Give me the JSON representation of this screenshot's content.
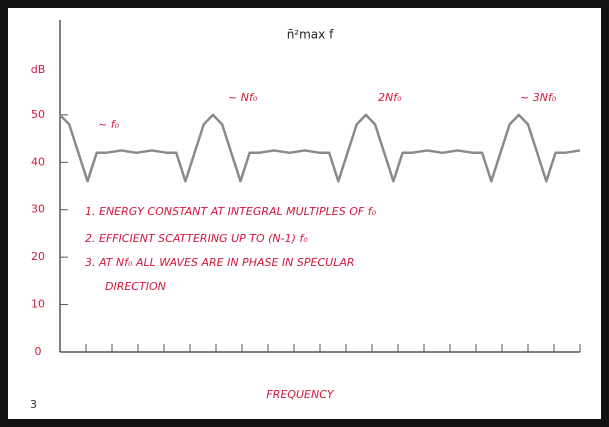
{
  "chart_data": {
    "type": "line",
    "title": "n̄²max f",
    "y_label": "dB",
    "x_label": "FREQUENCY",
    "annotations": [
      "~ f₀",
      "~ Nf₀",
      "2Nf₀",
      "~ 3Nf₀"
    ],
    "notes": [
      "1. ENERGY CONSTANT AT INTEGRAL MULTIPLES OF f₀",
      "2. EFFICIENT SCATTERING UP TO (N-1) f₀",
      "3. AT Nf₀ ALL WAVES ARE IN PHASE IN SPECULAR",
      "DIRECTION"
    ],
    "corner_mark": "3",
    "x": [
      0,
      0.06,
      0.12,
      0.18,
      0.24,
      0.3,
      0.4,
      0.5,
      0.6,
      0.7,
      0.76,
      0.82,
      0.88,
      0.94,
      1,
      1.06,
      1.12,
      1.18,
      1.24,
      1.3,
      1.4,
      1.5,
      1.6,
      1.7,
      1.76,
      1.82,
      1.88,
      1.94,
      2,
      2.06,
      2.12,
      2.18,
      2.24,
      2.3,
      2.4,
      2.5,
      2.6,
      2.7,
      2.76,
      2.82,
      2.88,
      2.94,
      3,
      3.06,
      3.12,
      3.18,
      3.24,
      3.3,
      3.4
    ],
    "series": [
      {
        "color": "#8a8a8a",
        "values": [
          50,
          48,
          42,
          36,
          42,
          42,
          42.5,
          42,
          42.5,
          42,
          42,
          36,
          42,
          48,
          50,
          48,
          42,
          36,
          42,
          42,
          42.5,
          42,
          42.5,
          42,
          42,
          36,
          42,
          48,
          50,
          48,
          42,
          36,
          42,
          42,
          42.5,
          42,
          42.5,
          42,
          42,
          36,
          42,
          48,
          50,
          48,
          42,
          36,
          42,
          42,
          42.5
        ]
      }
    ],
    "xlim": [
      0,
      3.4
    ],
    "ylim": [
      0,
      70
    ],
    "yticks": [
      0,
      10,
      20,
      30,
      40,
      50
    ]
  }
}
